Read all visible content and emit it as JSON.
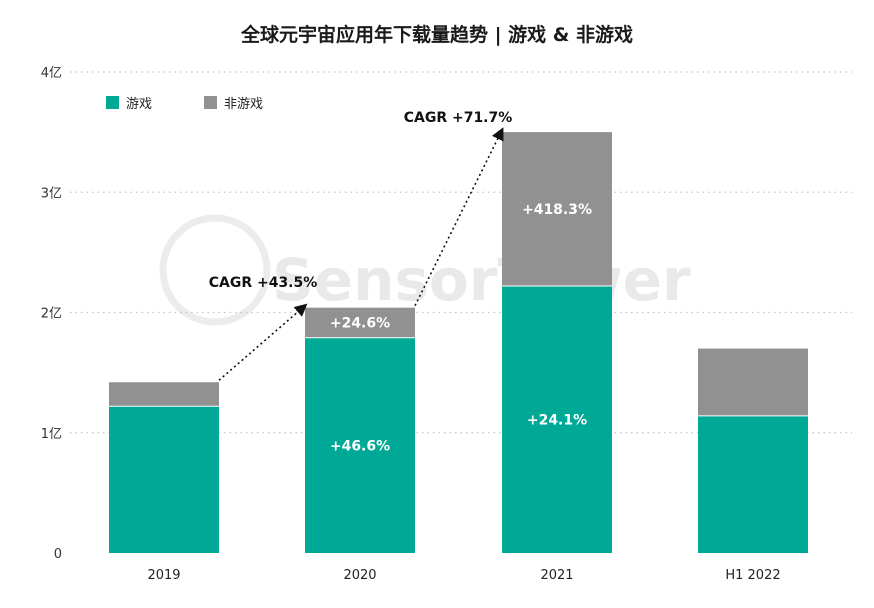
{
  "chart_data": {
    "type": "bar",
    "stacked": true,
    "title": "全球元宇宙应用年下载量趋势 | 游戏 & 非游戏",
    "categories": [
      "2019",
      "2020",
      "2021",
      "H1 2022"
    ],
    "series": [
      {
        "name": "游戏",
        "color": "#00a896",
        "values": [
          1.22,
          1.79,
          2.22,
          1.14
        ],
        "labels": [
          "",
          "+46.6%",
          "+24.1%",
          ""
        ]
      },
      {
        "name": "非游戏",
        "color": "#919191",
        "values": [
          0.2,
          0.25,
          1.28,
          0.56
        ],
        "labels": [
          "",
          "+24.6%",
          "+418.3%",
          ""
        ]
      }
    ],
    "ylim": [
      0,
      4
    ],
    "yticks": [
      {
        "value": 0,
        "label": "0"
      },
      {
        "value": 1,
        "label": "1亿"
      },
      {
        "value": 2,
        "label": "2亿"
      },
      {
        "value": 3,
        "label": "3亿"
      },
      {
        "value": 4,
        "label": "4亿"
      }
    ],
    "grid": true,
    "legend_position": "top-left",
    "annotations": [
      {
        "text": "CAGR +43.5%",
        "from": "2019",
        "to": "2020"
      },
      {
        "text": "CAGR +71.7%",
        "from": "2020",
        "to": "2021"
      }
    ],
    "watermark": "SensorTower"
  }
}
